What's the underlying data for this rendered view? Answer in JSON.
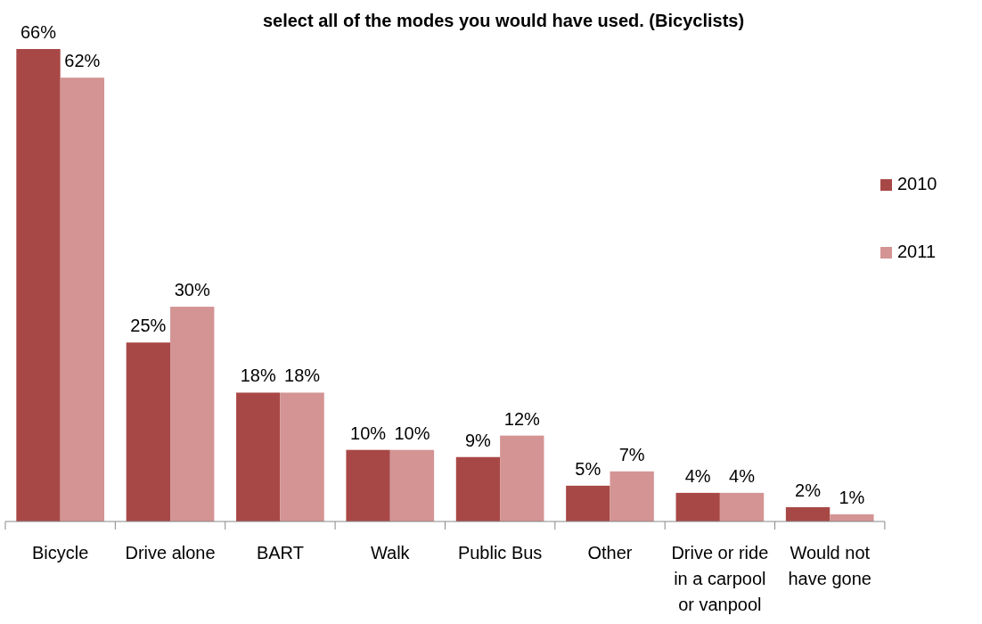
{
  "chart_data": {
    "type": "bar",
    "title": "select all of the modes you would have used.  (Bicyclists)",
    "categories": [
      "Bicycle",
      "Drive alone",
      "BART",
      "Walk",
      "Public Bus",
      "Other",
      "Drive or ride in a carpool or vanpool",
      "Would not have gone"
    ],
    "series": [
      {
        "name": "2010",
        "color": "#a84846",
        "values": [
          66,
          25,
          18,
          10,
          9,
          5,
          4,
          2
        ],
        "value_labels": [
          "66%",
          "25%",
          "18%",
          "10%",
          "9%",
          "5%",
          "4%",
          "2%"
        ]
      },
      {
        "name": "2011",
        "color": "#d49494",
        "values": [
          62,
          30,
          18,
          10,
          12,
          7,
          4,
          1
        ],
        "value_labels": [
          "62%",
          "30%",
          "18%",
          "10%",
          "12%",
          "7%",
          "4%",
          "1%"
        ]
      }
    ],
    "legend": "right"
  }
}
